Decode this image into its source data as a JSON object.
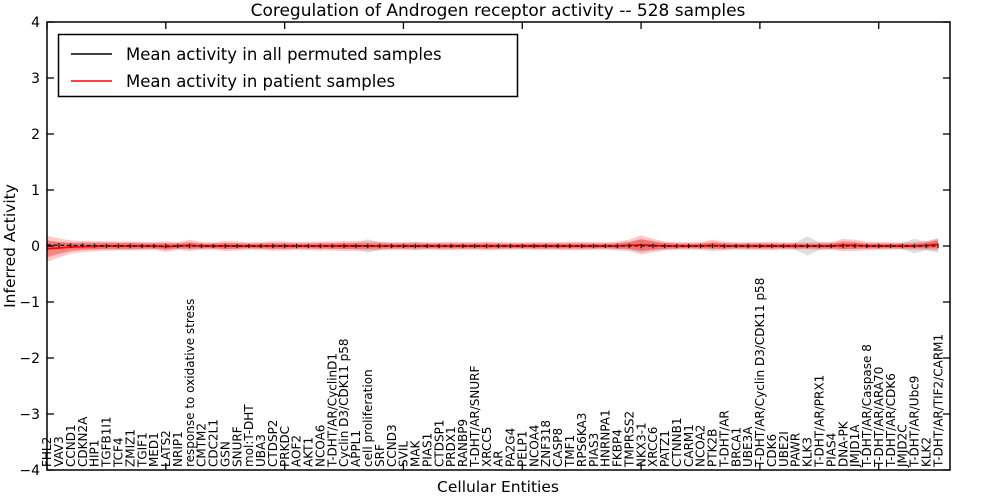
{
  "chart_data": {
    "type": "line",
    "title": "Coregulation of Androgen receptor activity -- 528 samples",
    "xlabel": "Cellular Entities",
    "ylabel": "Inferred Activity",
    "ylim": [
      -4,
      4
    ],
    "yticks": [
      4,
      3,
      2,
      1,
      0,
      -1,
      -2,
      -3,
      -4
    ],
    "ytick_labels": [
      "4",
      "3",
      "2",
      "1",
      "0",
      "−1",
      "−2",
      "−3",
      "−4"
    ],
    "x_major_tick_every": 10,
    "grid": false,
    "legend_position": "upper left",
    "legend": [
      {
        "label": "Mean activity in all permuted samples",
        "color": "#000000"
      },
      {
        "label": "Mean activity in patient samples",
        "color": "#ff0000"
      }
    ],
    "categories": [
      "FHL2",
      "VAV3",
      "CCND1",
      "CDKN2A",
      "HIP1",
      "TGFB1I1",
      "TCF4",
      "ZMIZ1",
      "TGIF1",
      "MED1",
      "LATS2",
      "NRIP1",
      "response to oxidative stress",
      "CMTM2",
      "CDC2L1",
      "GSN",
      "SNURF",
      "mol:T-DHT",
      "UBA3",
      "CTDSP2",
      "PRKDC",
      "AOF2",
      "AKT1",
      "NCOA6",
      "T-DHT/AR/CyclinD1",
      "Cyclin D3/CDK11 p58",
      "APPL1",
      "cell proliferation",
      "SRF",
      "CCND3",
      "SVIL",
      "MAK",
      "PIAS1",
      "CTDSP1",
      "PRDX1",
      "RANBP9",
      "T-DHT/AR/SNURF",
      "XRCC5",
      "AR",
      "PA2G4",
      "PELP1",
      "NCOA4",
      "ZNF318",
      "CASP8",
      "TMF1",
      "RPS6KA3",
      "PIAS3",
      "HNRNPA1",
      "FKBP4",
      "TMPRSS2",
      "NKX3-1",
      "XRCC6",
      "PATZ1",
      "CTNNB1",
      "CARM1",
      "NCOA2",
      "PTK2B",
      "T-DHT/AR",
      "BRCA1",
      "UBE3A",
      "T-DHT/AR/Cyclin D3/CDK11 p58",
      "CDK6",
      "UBE2I",
      "PAWR",
      "KLK3",
      "T-DHT/AR/PRX1",
      "PIAS4",
      "DNA-PK",
      "JMJD1A",
      "T-DHT/AR/Caspase 8",
      "T-DHT/AR/ARA70",
      "T-DHT/AR/CDK6",
      "JMJD2C",
      "T-DHT/AR/Ubc9",
      "KLK2",
      "T-DHT/AR/TIF2/CARM1"
    ],
    "series": [
      {
        "name": "Mean activity in all permuted samples",
        "color": "#000000",
        "style": "dashed-with-tick-markers",
        "values": [
          0.02,
          0.015,
          0.01,
          0.01,
          0.005,
          0,
          0,
          0,
          0,
          0,
          0,
          0,
          0,
          0,
          0,
          0,
          0,
          0,
          0,
          0,
          0,
          0,
          0,
          0,
          0,
          0,
          0,
          0,
          0,
          0,
          0,
          0,
          0,
          0,
          0,
          0,
          0,
          0,
          0,
          0,
          0,
          0,
          0,
          0,
          0,
          0,
          0,
          0,
          0,
          0,
          0,
          0,
          0,
          0,
          0,
          0,
          0,
          0,
          0,
          0,
          0,
          0,
          0,
          0,
          0,
          0,
          0,
          0,
          0,
          0,
          0,
          0,
          0,
          0,
          0,
          0
        ]
      },
      {
        "name": "Mean activity in patient samples",
        "color": "#ff0000",
        "style": "solid",
        "values": [
          -0.05,
          -0.035,
          -0.02,
          -0.01,
          -0.005,
          0,
          0,
          0,
          0,
          0,
          -0.01,
          0,
          0.01,
          0,
          0,
          0,
          0,
          0,
          0,
          0,
          0,
          0,
          0,
          0,
          0,
          0,
          0,
          0,
          0,
          0,
          0,
          0,
          0,
          0,
          0,
          0,
          0,
          0,
          0,
          0,
          0,
          0,
          0,
          0,
          0,
          0,
          0,
          0,
          0,
          0.01,
          0.02,
          0.01,
          0,
          0,
          0,
          0,
          0.01,
          0,
          0,
          0,
          0,
          0,
          0,
          0,
          0,
          0,
          0,
          0.015,
          0.01,
          0,
          0,
          0,
          0,
          0,
          0.01,
          0.03
        ]
      }
    ],
    "bands": [
      {
        "name": "permuted-samples-range",
        "color": "#888888",
        "opacity": 0.28,
        "center_series": 0,
        "half_widths": [
          0.06,
          0.055,
          0.05,
          0.06,
          0.065,
          0.065,
          0.06,
          0.06,
          0.055,
          0.05,
          0.05,
          0.045,
          0.05,
          0.045,
          0.045,
          0.045,
          0.045,
          0.045,
          0.045,
          0.05,
          0.05,
          0.045,
          0.045,
          0.045,
          0.045,
          0.05,
          0.06,
          0.12,
          0.07,
          0.05,
          0.045,
          0.08,
          0.05,
          0.045,
          0.045,
          0.045,
          0.045,
          0.045,
          0.045,
          0.045,
          0.045,
          0.045,
          0.045,
          0.045,
          0.045,
          0.045,
          0.045,
          0.045,
          0.05,
          0.07,
          0.11,
          0.08,
          0.055,
          0.045,
          0.045,
          0.045,
          0.05,
          0.05,
          0.045,
          0.045,
          0.045,
          0.045,
          0.045,
          0.07,
          0.17,
          0.07,
          0.05,
          0.05,
          0.05,
          0.045,
          0.045,
          0.045,
          0.055,
          0.13,
          0.075,
          0.12
        ]
      },
      {
        "name": "patient-samples-range-outer",
        "color": "#ff0000",
        "opacity": 0.22,
        "center_series": 1,
        "half_widths": [
          0.23,
          0.17,
          0.12,
          0.1,
          0.09,
          0.085,
          0.08,
          0.08,
          0.075,
          0.07,
          0.095,
          0.07,
          0.1,
          0.07,
          0.065,
          0.09,
          0.08,
          0.065,
          0.07,
          0.085,
          0.08,
          0.07,
          0.075,
          0.08,
          0.08,
          0.09,
          0.085,
          0.08,
          0.075,
          0.07,
          0.07,
          0.065,
          0.065,
          0.07,
          0.075,
          0.07,
          0.07,
          0.08,
          0.07,
          0.065,
          0.065,
          0.07,
          0.07,
          0.07,
          0.075,
          0.075,
          0.07,
          0.065,
          0.08,
          0.1,
          0.17,
          0.12,
          0.08,
          0.07,
          0.065,
          0.07,
          0.1,
          0.08,
          0.065,
          0.07,
          0.07,
          0.075,
          0.065,
          0.06,
          0.06,
          0.065,
          0.07,
          0.11,
          0.1,
          0.075,
          0.07,
          0.065,
          0.06,
          0.065,
          0.08,
          0.11
        ]
      },
      {
        "name": "patient-samples-range-inner",
        "color": "#ff0000",
        "opacity": 0.33,
        "center_series": 1,
        "half_widths": [
          0.15,
          0.105,
          0.075,
          0.06,
          0.055,
          0.05,
          0.05,
          0.05,
          0.045,
          0.045,
          0.06,
          0.045,
          0.06,
          0.045,
          0.04,
          0.055,
          0.05,
          0.04,
          0.045,
          0.05,
          0.05,
          0.045,
          0.045,
          0.05,
          0.05,
          0.055,
          0.05,
          0.05,
          0.045,
          0.045,
          0.045,
          0.04,
          0.04,
          0.045,
          0.045,
          0.045,
          0.045,
          0.05,
          0.045,
          0.04,
          0.04,
          0.045,
          0.045,
          0.045,
          0.045,
          0.045,
          0.045,
          0.04,
          0.05,
          0.06,
          0.105,
          0.075,
          0.05,
          0.045,
          0.04,
          0.045,
          0.06,
          0.05,
          0.04,
          0.045,
          0.045,
          0.045,
          0.04,
          0.04,
          0.04,
          0.04,
          0.045,
          0.07,
          0.06,
          0.045,
          0.045,
          0.04,
          0.04,
          0.04,
          0.05,
          0.07
        ]
      }
    ]
  }
}
